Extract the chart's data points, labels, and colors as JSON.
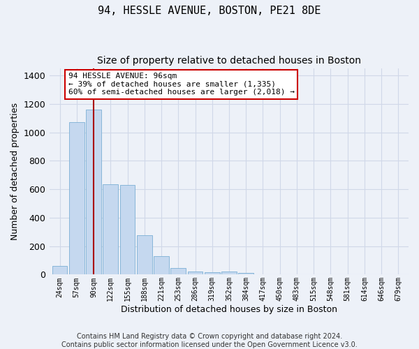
{
  "title": "94, HESSLE AVENUE, BOSTON, PE21 8DE",
  "subtitle": "Size of property relative to detached houses in Boston",
  "xlabel": "Distribution of detached houses by size in Boston",
  "ylabel": "Number of detached properties",
  "categories": [
    "24sqm",
    "57sqm",
    "90sqm",
    "122sqm",
    "155sqm",
    "188sqm",
    "221sqm",
    "253sqm",
    "286sqm",
    "319sqm",
    "352sqm",
    "384sqm",
    "417sqm",
    "450sqm",
    "483sqm",
    "515sqm",
    "548sqm",
    "581sqm",
    "614sqm",
    "646sqm",
    "679sqm"
  ],
  "values": [
    60,
    1070,
    1160,
    635,
    630,
    275,
    130,
    45,
    20,
    15,
    20,
    10,
    0,
    0,
    0,
    0,
    0,
    0,
    0,
    0,
    0
  ],
  "bar_color": "#c5d8ef",
  "bar_edge_color": "#7bafd4",
  "vline_x": 2,
  "vline_color": "#aa0000",
  "annotation_line1": "94 HESSLE AVENUE: 96sqm",
  "annotation_line2": "← 39% of detached houses are smaller (1,335)",
  "annotation_line3": "60% of semi-detached houses are larger (2,018) →",
  "annotation_box_facecolor": "#ffffff",
  "annotation_box_edgecolor": "#cc0000",
  "ylim": [
    0,
    1450
  ],
  "yticks": [
    0,
    200,
    400,
    600,
    800,
    1000,
    1200,
    1400
  ],
  "background_color": "#edf1f8",
  "grid_color": "#d0d8e8",
  "footer_line1": "Contains HM Land Registry data © Crown copyright and database right 2024.",
  "footer_line2": "Contains public sector information licensed under the Open Government Licence v3.0.",
  "title_fontsize": 11,
  "subtitle_fontsize": 10,
  "xlabel_fontsize": 9,
  "ylabel_fontsize": 9,
  "tick_fontsize": 9,
  "xtick_fontsize": 7,
  "footer_fontsize": 7,
  "annotation_fontsize": 8
}
